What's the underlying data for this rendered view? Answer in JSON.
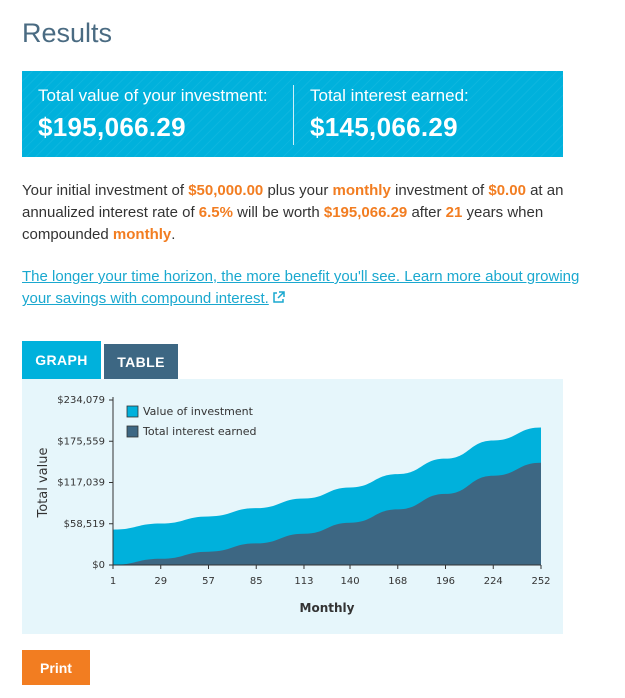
{
  "page": {
    "title": "Results"
  },
  "summary": {
    "total_value_label": "Total value of your investment:",
    "total_value": "$195,066.29",
    "total_interest_label": "Total interest earned:",
    "total_interest": "$145,066.29"
  },
  "description": {
    "t1": "Your initial investment of ",
    "initial": "$50,000.00",
    "t2": " plus your ",
    "frequency": "monthly",
    "t3": " investment of ",
    "monthly_amount": "$0.00",
    "t4": " at an annualized interest rate of ",
    "rate": "6.5%",
    "t5": " will be worth ",
    "worth": "$195,066.29",
    "t6": " after ",
    "years": "21",
    "t7": " years when compounded ",
    "compounding": "monthly",
    "t8": "."
  },
  "learn_more": {
    "text": "The longer your time horizon, the more benefit you'll see. Learn more about growing your savings with compound interest."
  },
  "tabs": {
    "graph": "GRAPH",
    "table": "TABLE"
  },
  "print": {
    "label": "Print"
  },
  "colors": {
    "accent": "#00b1dc",
    "dark": "#3d6783",
    "orange": "#f27d21"
  },
  "icons": {
    "external_link": "external-link-icon"
  },
  "chart_data": {
    "type": "area",
    "title": "",
    "xlabel": "Monthly",
    "ylabel": "Total value",
    "ylim": [
      0,
      234079
    ],
    "xlim": [
      1,
      252
    ],
    "yticks": [
      0,
      58519,
      117039,
      175559,
      234079
    ],
    "ytick_labels": [
      "$0",
      "$58,519",
      "$117,039",
      "$175,559",
      "$234,079"
    ],
    "xticks": [
      1,
      29,
      57,
      85,
      113,
      140,
      168,
      196,
      224,
      252
    ],
    "grid": false,
    "legend_position": "top-left",
    "series": [
      {
        "name": "Value of investment",
        "color": "#00b1dc",
        "x": [
          1,
          29,
          57,
          85,
          113,
          140,
          168,
          196,
          224,
          252
        ],
        "values": [
          50271,
          58843,
          68877,
          80621,
          94367,
          110021,
          128918,
          150869,
          176627,
          195066
        ]
      },
      {
        "name": "Total interest earned",
        "color": "#3d6783",
        "x": [
          1,
          29,
          57,
          85,
          113,
          140,
          168,
          196,
          224,
          252
        ],
        "values": [
          271,
          8843,
          18877,
          30621,
          44367,
          60021,
          78918,
          100869,
          126627,
          145066
        ]
      }
    ]
  }
}
